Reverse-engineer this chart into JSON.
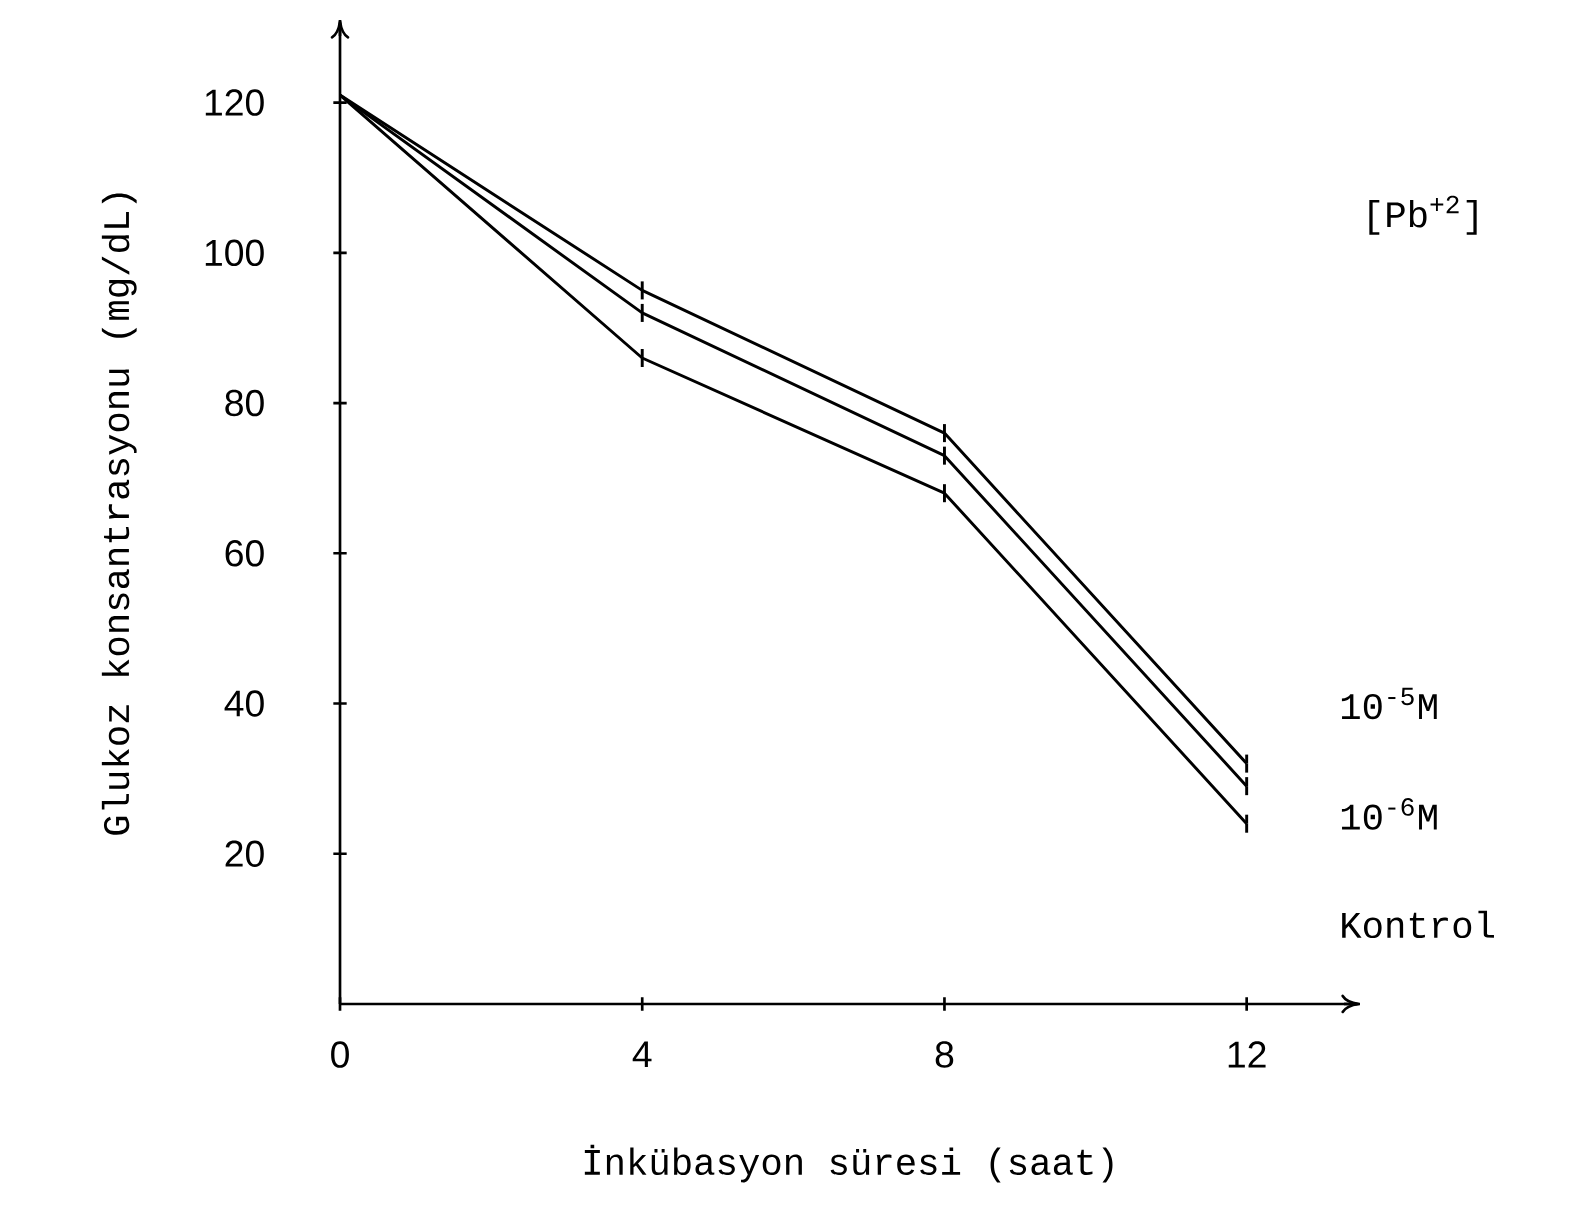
{
  "chart_data": {
    "type": "line",
    "xlabel": "İnkübasyon süresi (saat)",
    "ylabel": "Glukoz konsantrasyonu (mg/dL)",
    "legend_title": "[Pb$^{+2}$]",
    "x": [
      0,
      4,
      8,
      12
    ],
    "xlim": [
      0,
      13.5
    ],
    "ylim": [
      0,
      131
    ],
    "xticks": [
      0,
      4,
      8,
      12
    ],
    "yticks": [
      20,
      40,
      60,
      80,
      100,
      120
    ],
    "marker": "none",
    "line_style": "solid",
    "grid": false,
    "series": [
      {
        "name": "10$^{-5}$M",
        "color": "#000000",
        "values": [
          121,
          95,
          76,
          32
        ],
        "errors": [
          null,
          1.2,
          1.2,
          1.2
        ]
      },
      {
        "name": "10$^{-6}$M",
        "color": "#000000",
        "values": [
          121,
          92,
          73,
          29
        ],
        "errors": [
          null,
          1.2,
          1.2,
          1.2
        ]
      },
      {
        "name": "Kontrol",
        "color": "#000000",
        "values": [
          121,
          86,
          68,
          24
        ],
        "errors": [
          null,
          1.2,
          1.2,
          1.2
        ]
      }
    ]
  }
}
